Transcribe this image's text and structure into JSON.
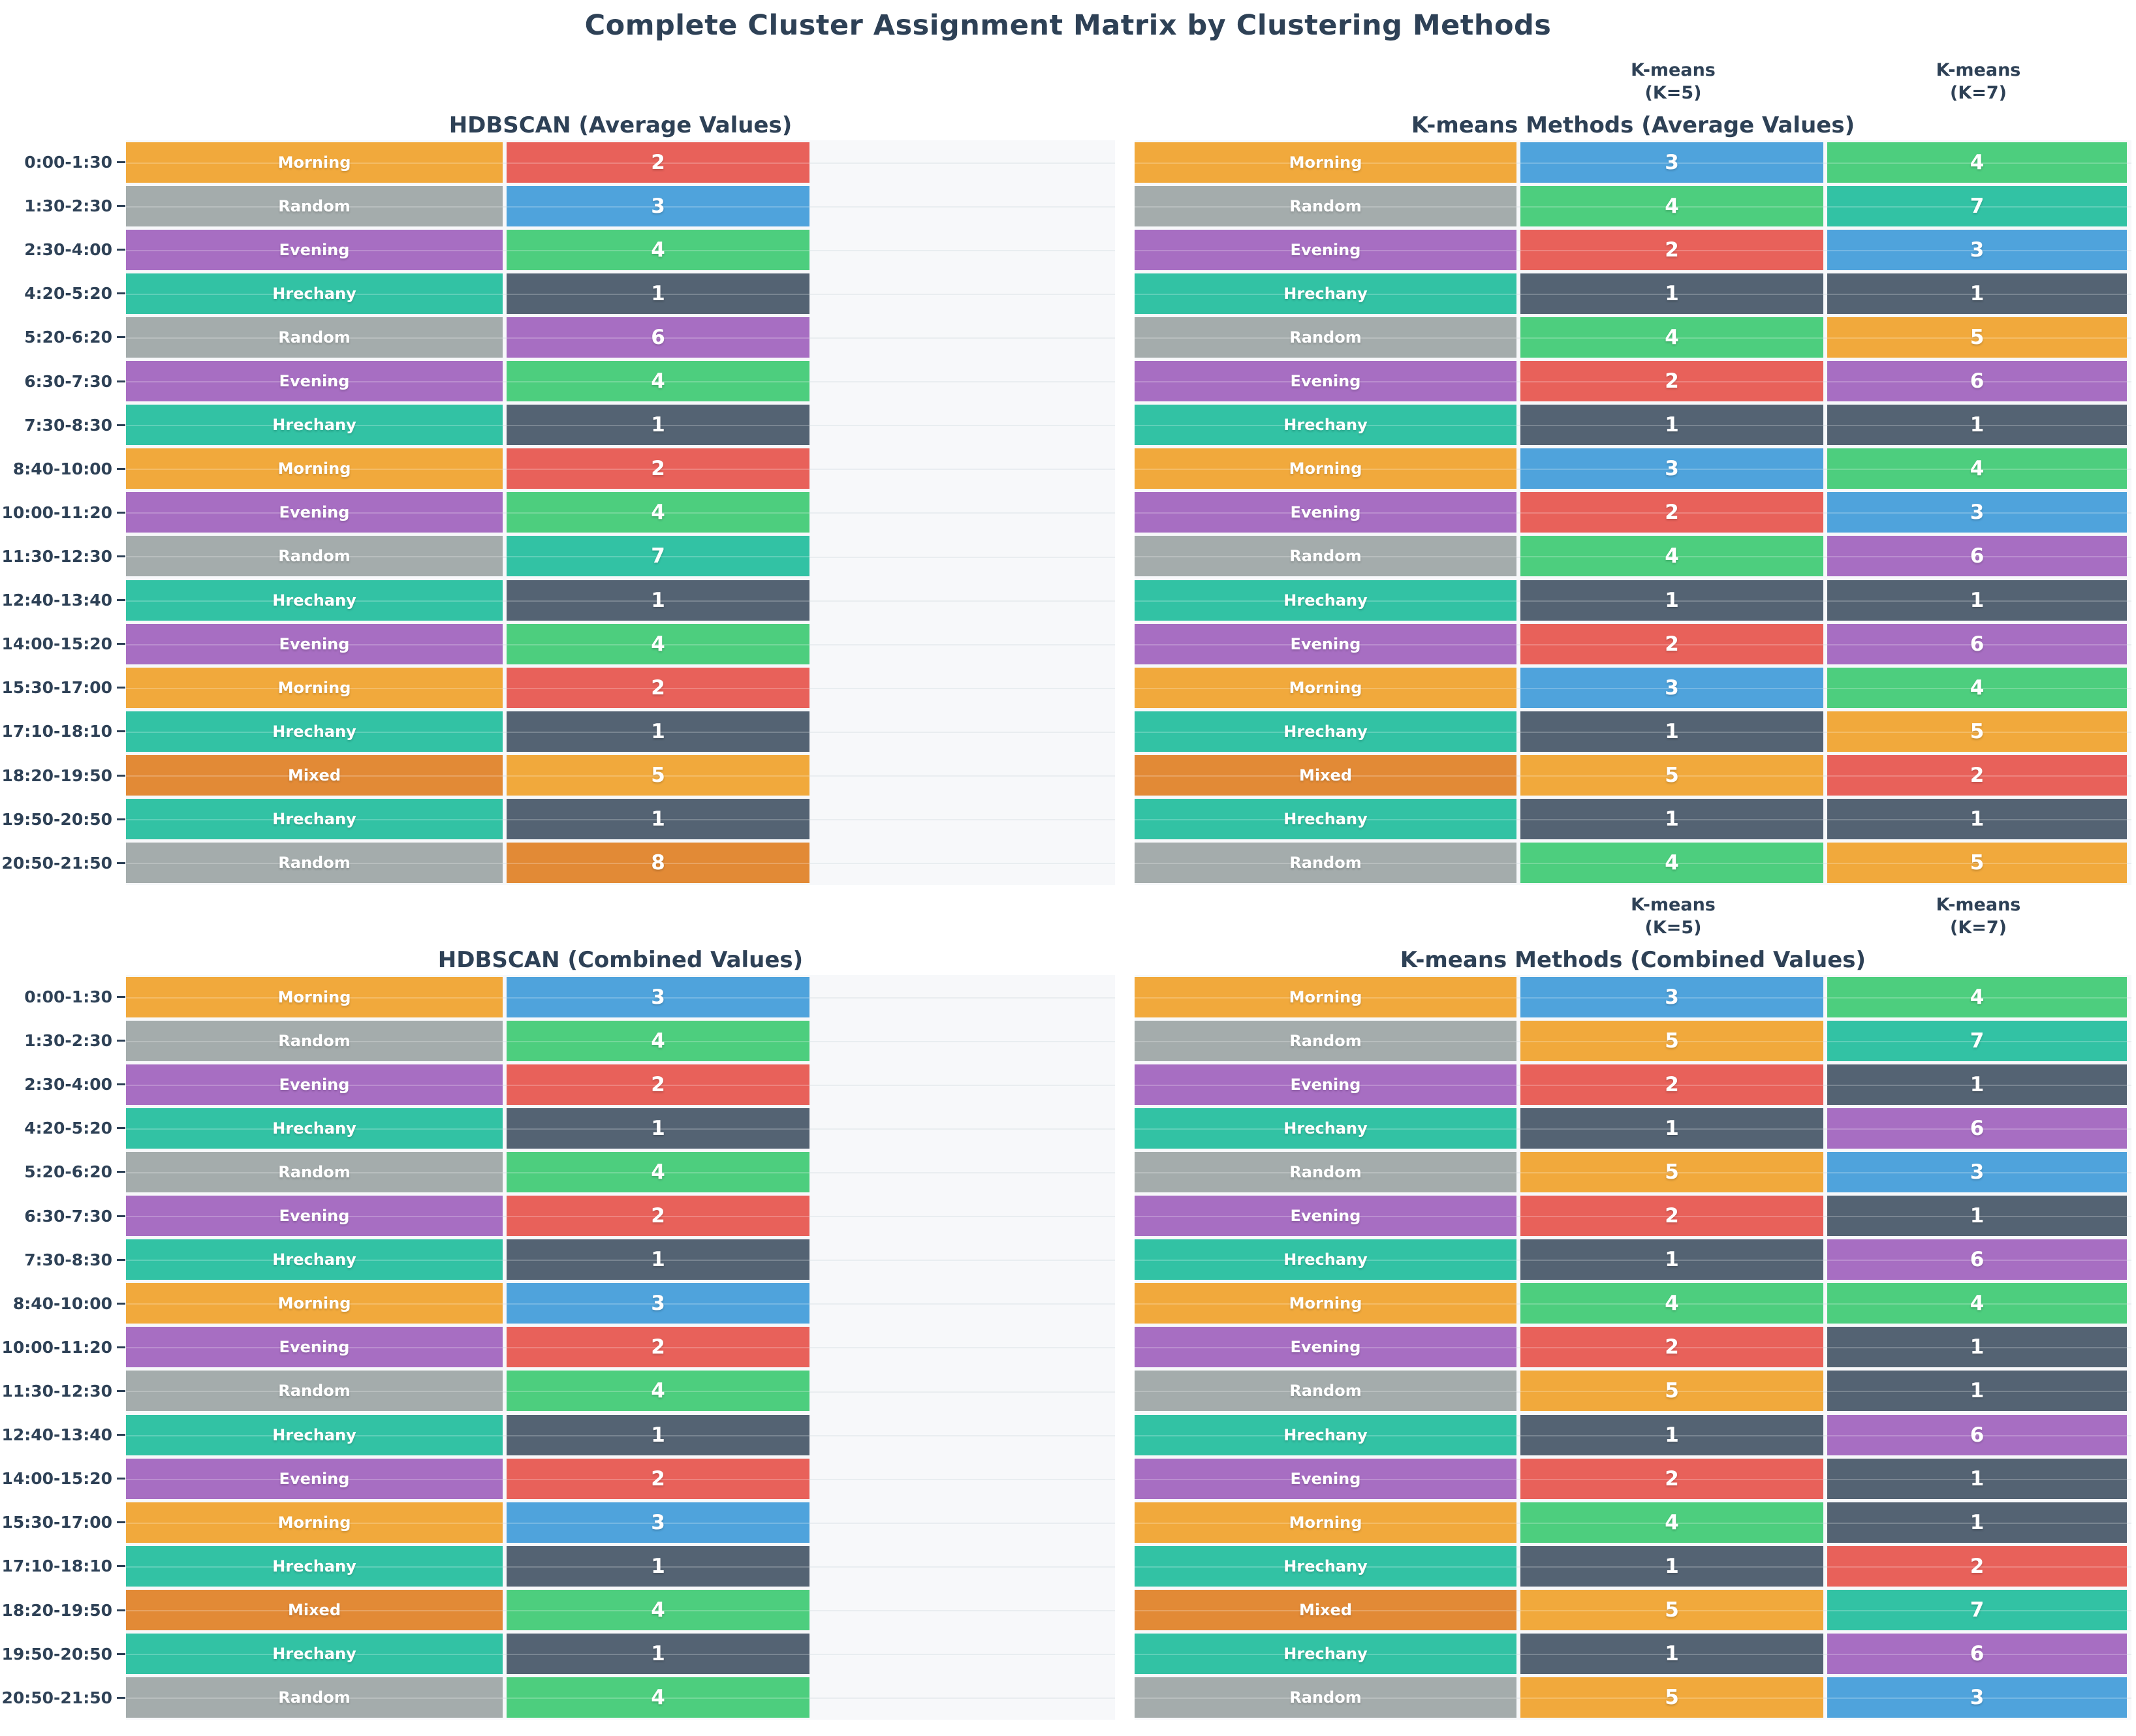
{
  "chart_data": {
    "type": "heatmap",
    "title": "Complete Cluster Assignment Matrix by Clustering Methods",
    "y_axis": "time intervals",
    "grid": "on",
    "text_color": "#2E4156",
    "plot_background": "#F7F8FA",
    "gridline_color": "#E9EDF0",
    "time_labels": [
      "0:00-1:30",
      "1:30-2:30",
      "2:30-4:00",
      "4:20-5:20",
      "5:20-6:20",
      "6:30-7:30",
      "7:30-8:30",
      "8:40-10:00",
      "10:00-11:20",
      "11:30-12:30",
      "12:40-13:40",
      "14:00-15:20",
      "15:30-17:00",
      "17:10-18:10",
      "18:20-19:50",
      "19:50-20:50",
      "20:50-21:50"
    ],
    "category_colors": {
      "Morning": "#F1A93C",
      "Random": "#A4ACAC",
      "Evening": "#A76EC2",
      "Hrechany": "#32C2A4",
      "Mixed": "#E28A36"
    },
    "cluster_colors": {
      "1": "#546373",
      "2": "#E8615A",
      "3": "#4FA3DC",
      "4": "#4DCE7E",
      "5": "#F1A93C",
      "6": "#A76EC2",
      "7": "#32C2A4",
      "8": "#E28A36"
    },
    "sections": [
      {
        "name": "Average Values",
        "left": {
          "title": "HDBSCAN (Average Values)",
          "rows": [
            {
              "category": "Morning",
              "value": 2
            },
            {
              "category": "Random",
              "value": 3
            },
            {
              "category": "Evening",
              "value": 4
            },
            {
              "category": "Hrechany",
              "value": 1
            },
            {
              "category": "Random",
              "value": 6
            },
            {
              "category": "Evening",
              "value": 4
            },
            {
              "category": "Hrechany",
              "value": 1
            },
            {
              "category": "Morning",
              "value": 2
            },
            {
              "category": "Evening",
              "value": 4
            },
            {
              "category": "Random",
              "value": 7
            },
            {
              "category": "Hrechany",
              "value": 1
            },
            {
              "category": "Evening",
              "value": 4
            },
            {
              "category": "Morning",
              "value": 2
            },
            {
              "category": "Hrechany",
              "value": 1
            },
            {
              "category": "Mixed",
              "value": 5
            },
            {
              "category": "Hrechany",
              "value": 1
            },
            {
              "category": "Random",
              "value": 8
            }
          ]
        },
        "right": {
          "title": "K-means Methods (Average Values)",
          "col_headers": [
            {
              "line1": "K-means",
              "line2": "(K=5)"
            },
            {
              "line1": "K-means",
              "line2": "(K=7)"
            }
          ],
          "rows": [
            {
              "category": "Morning",
              "values": [
                3,
                4
              ]
            },
            {
              "category": "Random",
              "values": [
                4,
                7
              ]
            },
            {
              "category": "Evening",
              "values": [
                2,
                3
              ]
            },
            {
              "category": "Hrechany",
              "values": [
                1,
                1
              ]
            },
            {
              "category": "Random",
              "values": [
                4,
                5
              ]
            },
            {
              "category": "Evening",
              "values": [
                2,
                6
              ]
            },
            {
              "category": "Hrechany",
              "values": [
                1,
                1
              ]
            },
            {
              "category": "Morning",
              "values": [
                3,
                4
              ]
            },
            {
              "category": "Evening",
              "values": [
                2,
                3
              ]
            },
            {
              "category": "Random",
              "values": [
                4,
                6
              ]
            },
            {
              "category": "Hrechany",
              "values": [
                1,
                1
              ]
            },
            {
              "category": "Evening",
              "values": [
                2,
                6
              ]
            },
            {
              "category": "Morning",
              "values": [
                3,
                4
              ]
            },
            {
              "category": "Hrechany",
              "values": [
                1,
                5
              ]
            },
            {
              "category": "Mixed",
              "values": [
                5,
                2
              ]
            },
            {
              "category": "Hrechany",
              "values": [
                1,
                1
              ]
            },
            {
              "category": "Random",
              "values": [
                4,
                5
              ]
            }
          ]
        }
      },
      {
        "name": "Combined Values",
        "left": {
          "title": "HDBSCAN (Combined Values)",
          "rows": [
            {
              "category": "Morning",
              "value": 3
            },
            {
              "category": "Random",
              "value": 4
            },
            {
              "category": "Evening",
              "value": 2
            },
            {
              "category": "Hrechany",
              "value": 1
            },
            {
              "category": "Random",
              "value": 4
            },
            {
              "category": "Evening",
              "value": 2
            },
            {
              "category": "Hrechany",
              "value": 1
            },
            {
              "category": "Morning",
              "value": 3
            },
            {
              "category": "Evening",
              "value": 2
            },
            {
              "category": "Random",
              "value": 4
            },
            {
              "category": "Hrechany",
              "value": 1
            },
            {
              "category": "Evening",
              "value": 2
            },
            {
              "category": "Morning",
              "value": 3
            },
            {
              "category": "Hrechany",
              "value": 1
            },
            {
              "category": "Mixed",
              "value": 4
            },
            {
              "category": "Hrechany",
              "value": 1
            },
            {
              "category": "Random",
              "value": 4
            }
          ]
        },
        "right": {
          "title": "K-means Methods (Combined Values)",
          "col_headers": [
            {
              "line1": "K-means",
              "line2": "(K=5)"
            },
            {
              "line1": "K-means",
              "line2": "(K=7)"
            }
          ],
          "rows": [
            {
              "category": "Morning",
              "values": [
                3,
                4
              ]
            },
            {
              "category": "Random",
              "values": [
                5,
                7
              ]
            },
            {
              "category": "Evening",
              "values": [
                2,
                1
              ]
            },
            {
              "category": "Hrechany",
              "values": [
                1,
                6
              ]
            },
            {
              "category": "Random",
              "values": [
                5,
                3
              ]
            },
            {
              "category": "Evening",
              "values": [
                2,
                1
              ]
            },
            {
              "category": "Hrechany",
              "values": [
                1,
                6
              ]
            },
            {
              "category": "Morning",
              "values": [
                4,
                4
              ]
            },
            {
              "category": "Evening",
              "values": [
                2,
                1
              ]
            },
            {
              "category": "Random",
              "values": [
                5,
                1
              ]
            },
            {
              "category": "Hrechany",
              "values": [
                1,
                6
              ]
            },
            {
              "category": "Evening",
              "values": [
                2,
                1
              ]
            },
            {
              "category": "Morning",
              "values": [
                4,
                1
              ]
            },
            {
              "category": "Hrechany",
              "values": [
                1,
                2
              ]
            },
            {
              "category": "Mixed",
              "values": [
                5,
                7
              ]
            },
            {
              "category": "Hrechany",
              "values": [
                1,
                6
              ]
            },
            {
              "category": "Random",
              "values": [
                5,
                3
              ]
            }
          ]
        }
      }
    ]
  }
}
